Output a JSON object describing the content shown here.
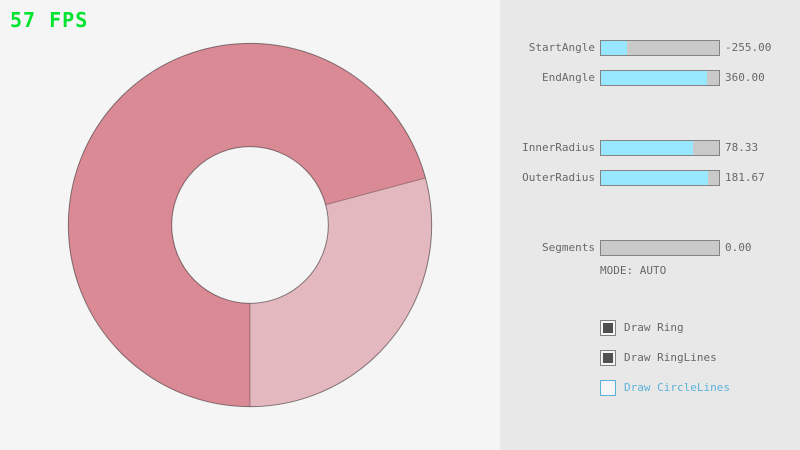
{
  "window": {
    "fps_label": "57 FPS"
  },
  "colors": {
    "background": "#f5f5f5",
    "panel_background": "#e8e8e8",
    "ring_dark": "#d98a95",
    "ring_light": "#e3b8bf",
    "ring_outline": "rgba(0,0,0,0.45)",
    "ring_line": "rgba(0,0,0,0.28)",
    "slider_fill": "#97e8ff",
    "slider_track": "#c9c9c9",
    "control_border": "#838383",
    "label_text": "#686868",
    "focused_blue": "#5bb2d9",
    "fps_green": "#00e430",
    "checkbox_check": "#515151"
  },
  "sliders": [
    {
      "label": "StartAngle",
      "value": "-255.00",
      "fraction": 0.217
    },
    {
      "label": "EndAngle",
      "value": "360.00",
      "fraction": 0.9
    },
    {
      "label": "InnerRadius",
      "value": "78.33",
      "fraction": 0.783
    },
    {
      "label": "OuterRadius",
      "value": "181.67",
      "fraction": 0.908
    },
    {
      "label": "Segments",
      "value": "0.00",
      "fraction": 0.0
    }
  ],
  "mode": {
    "label": "MODE: AUTO"
  },
  "checkboxes": [
    {
      "label": "Draw Ring",
      "checked": true,
      "focused": false
    },
    {
      "label": "Draw RingLines",
      "checked": true,
      "focused": false
    },
    {
      "label": "Draw CircleLines",
      "checked": false,
      "focused": true
    }
  ],
  "ring": {
    "start_angle": -255.0,
    "end_angle": 360.0,
    "inner_radius": 78.33,
    "outer_radius": 181.67,
    "segments": 0
  }
}
